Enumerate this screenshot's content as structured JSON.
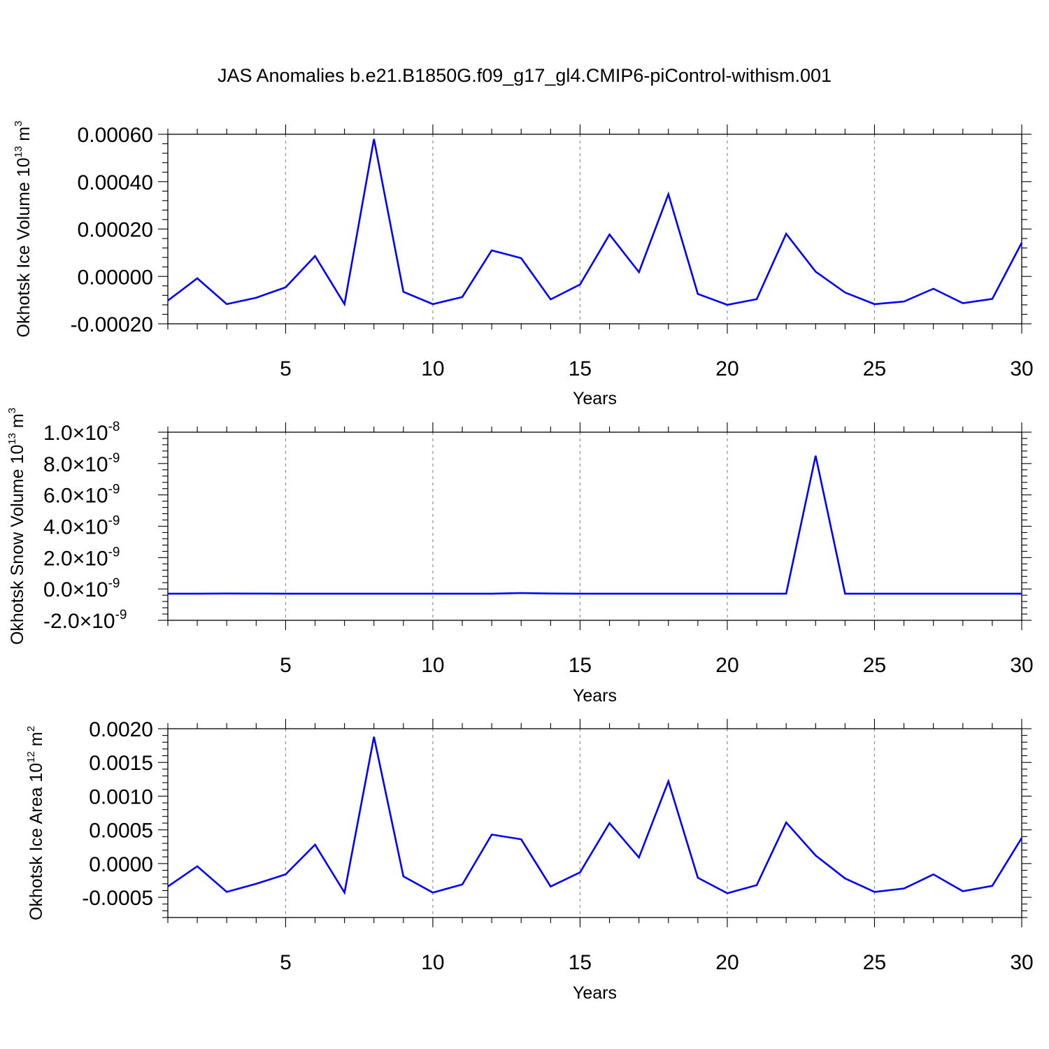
{
  "title": "JAS Anomalies b.e21.B1850G.f09_g17_gl4.CMIP6-piControl-withism.001",
  "colors": {
    "line": "#0000ff",
    "axis": "#000000",
    "grid": "#8c8c8c"
  },
  "chart_data": [
    {
      "type": "line",
      "ylabel": {
        "text": "Okhotsk Ice Volume 10",
        "sup": "13",
        "unit": " m",
        "unit_sup": "3"
      },
      "xlabel": "Years",
      "xlim": [
        1,
        30
      ],
      "ylim": [
        -0.0002,
        0.0006
      ],
      "grid": "vertical dashed at x = 5, 10, 15, 20, 25",
      "x_ticks": [
        5,
        10,
        15,
        20,
        25,
        30
      ],
      "x_tick_labels": [
        "5",
        "10",
        "15",
        "20",
        "25",
        "30"
      ],
      "y_ticks": [
        -0.0002,
        0,
        0.0002,
        0.0004,
        0.0006
      ],
      "y_tick_labels": [
        "-0.00020",
        "0.00000",
        "0.00020",
        "0.00040",
        "0.00060"
      ],
      "x": [
        1,
        2,
        3,
        4,
        5,
        6,
        7,
        8,
        9,
        10,
        11,
        12,
        13,
        14,
        15,
        16,
        17,
        18,
        19,
        20,
        21,
        22,
        23,
        24,
        25,
        26,
        27,
        28,
        29,
        30
      ],
      "values": [
        -0.000102,
        -8e-06,
        -0.000117,
        -9e-05,
        -4.6e-05,
        8.6e-05,
        -0.000117,
        0.00058,
        -6.5e-05,
        -0.000117,
        -8.7e-05,
        0.00011,
        7.7e-05,
        -9.7e-05,
        -3.4e-05,
        0.000177,
        1.8e-05,
        0.000347,
        -7.4e-05,
        -0.00012,
        -9.6e-05,
        0.00018,
        2e-05,
        -6.8e-05,
        -0.000117,
        -0.000106,
        -5.2e-05,
        -0.000113,
        -9.5e-05,
        0.000142
      ]
    },
    {
      "type": "line",
      "ylabel": {
        "text": "Okhotsk Snow Volume 10",
        "sup": "13",
        "unit": " m",
        "unit_sup": "3"
      },
      "xlabel": "Years",
      "xlim": [
        1,
        30
      ],
      "ylim": [
        -2e-09,
        1e-08
      ],
      "grid": "vertical dashed at x = 5, 10, 15, 20, 25",
      "x_ticks": [
        5,
        10,
        15,
        20,
        25,
        30
      ],
      "x_tick_labels": [
        "5",
        "10",
        "15",
        "20",
        "25",
        "30"
      ],
      "y_ticks": [
        -2e-09,
        0,
        2e-09,
        4e-09,
        6e-09,
        8e-09,
        1e-08
      ],
      "y_tick_labels": [
        {
          "mant": "-2.0",
          "exp": "-9"
        },
        {
          "mant": "0.0",
          "exp": "-9"
        },
        {
          "mant": "2.0",
          "exp": "-9"
        },
        {
          "mant": "4.0",
          "exp": "-9"
        },
        {
          "mant": "6.0",
          "exp": "-9"
        },
        {
          "mant": "8.0",
          "exp": "-9"
        },
        {
          "mant": "1.0",
          "exp": "-8"
        }
      ],
      "tick_times": "×10",
      "x": [
        1,
        2,
        3,
        4,
        5,
        6,
        7,
        8,
        9,
        10,
        11,
        12,
        13,
        14,
        15,
        16,
        17,
        18,
        19,
        20,
        21,
        22,
        23,
        24,
        25,
        26,
        27,
        28,
        29,
        30
      ],
      "values": [
        -3e-10,
        -3e-10,
        -2.9e-10,
        -2.95e-10,
        -3e-10,
        -3e-10,
        -3e-10,
        -3e-10,
        -3e-10,
        -3e-10,
        -3e-10,
        -3e-10,
        -2.6e-10,
        -2.9e-10,
        -3e-10,
        -3e-10,
        -3e-10,
        -3e-10,
        -3e-10,
        -3e-10,
        -3e-10,
        -3e-10,
        8.5e-09,
        -3e-10,
        -3e-10,
        -3e-10,
        -3e-10,
        -3e-10,
        -3e-10,
        -3e-10
      ]
    },
    {
      "type": "line",
      "ylabel": {
        "text": "Okhotsk Ice Area 10",
        "sup": "12",
        "unit": " m",
        "unit_sup": "2"
      },
      "xlabel": "Years",
      "xlim": [
        1,
        30
      ],
      "ylim": [
        -0.0008,
        0.002
      ],
      "grid": "vertical dashed at x = 5, 10, 15, 20, 25",
      "x_ticks": [
        5,
        10,
        15,
        20,
        25,
        30
      ],
      "x_tick_labels": [
        "5",
        "10",
        "15",
        "20",
        "25",
        "30"
      ],
      "y_ticks": [
        -0.0005,
        0,
        0.0005,
        0.001,
        0.0015,
        0.002
      ],
      "y_tick_labels": [
        "-0.0005",
        "0.0000",
        "0.0005",
        "0.0010",
        "0.0015",
        "0.0020"
      ],
      "x": [
        1,
        2,
        3,
        4,
        5,
        6,
        7,
        8,
        9,
        10,
        11,
        12,
        13,
        14,
        15,
        16,
        17,
        18,
        19,
        20,
        21,
        22,
        23,
        24,
        25,
        26,
        27,
        28,
        29,
        30
      ],
      "values": [
        -0.00034,
        -4e-05,
        -0.00042,
        -0.0003,
        -0.00016,
        0.00028,
        -0.00043,
        0.00188,
        -0.00019,
        -0.00043,
        -0.00031,
        0.00043,
        0.00036,
        -0.00034,
        -0.00013,
        0.0006,
        9e-05,
        0.00122,
        -0.00021,
        -0.00044,
        -0.00032,
        0.00061,
        0.00012,
        -0.00022,
        -0.00042,
        -0.00037,
        -0.00016,
        -0.00041,
        -0.00033,
        0.00038
      ]
    }
  ]
}
